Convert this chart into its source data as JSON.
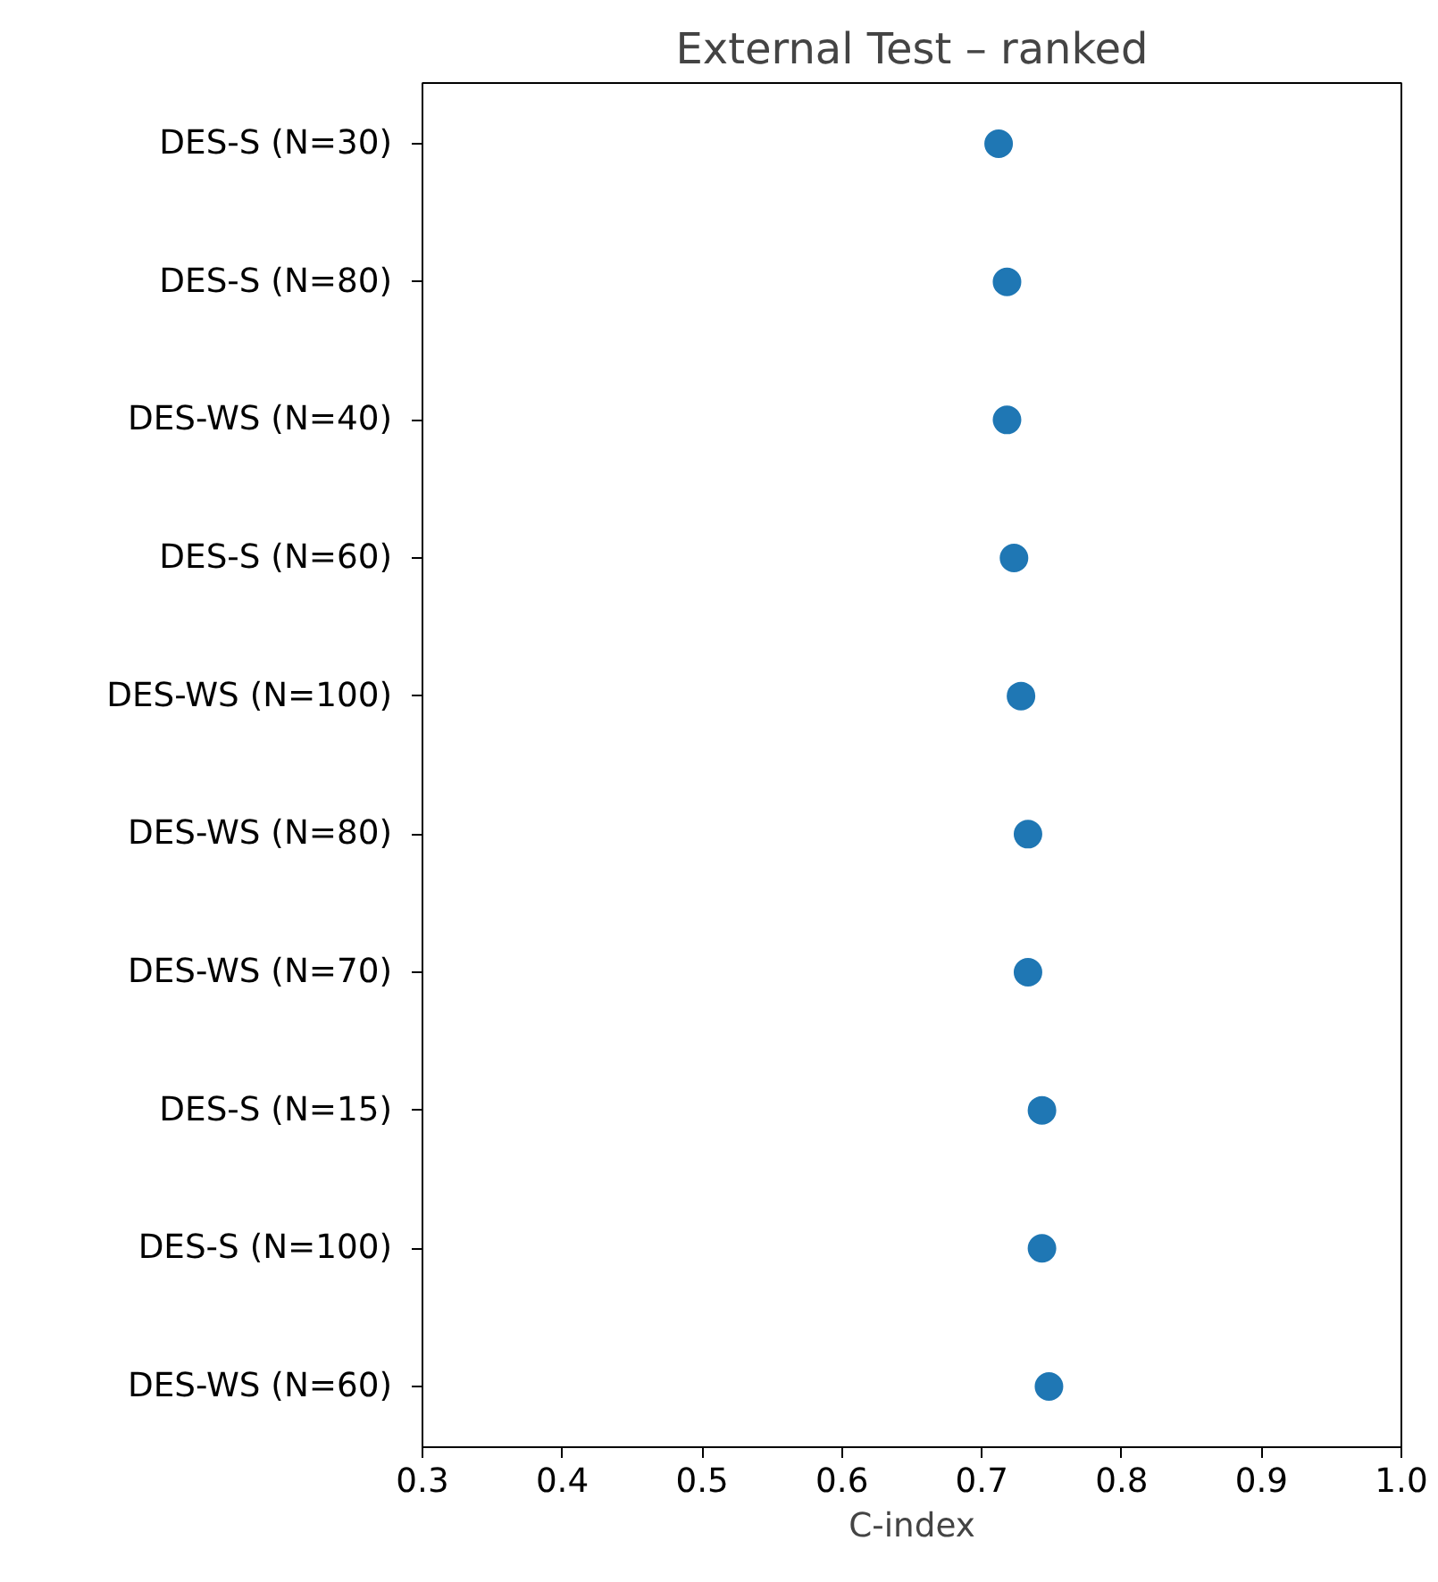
{
  "chart_data": {
    "type": "scatter",
    "title": "External Test – ranked",
    "xlabel": "C-index",
    "orientation": "horizontal",
    "categories": [
      "DES-S  (N=30)",
      "DES-S  (N=80)",
      "DES-WS  (N=40)",
      "DES-S  (N=60)",
      "DES-WS  (N=100)",
      "DES-WS  (N=80)",
      "DES-WS  (N=70)",
      "DES-S  (N=15)",
      "DES-S  (N=100)",
      "DES-WS  (N=60)"
    ],
    "values": [
      0.712,
      0.718,
      0.718,
      0.723,
      0.728,
      0.733,
      0.733,
      0.743,
      0.743,
      0.748
    ],
    "color": "#1f77b4",
    "marker": "circle",
    "grid": false,
    "xlim": [
      0.3,
      1.0
    ],
    "xticks": [
      0.3,
      0.4,
      0.5,
      0.6,
      0.7,
      0.8,
      0.9,
      {
        "value": 1.0,
        "label": "1.0"
      }
    ]
  }
}
